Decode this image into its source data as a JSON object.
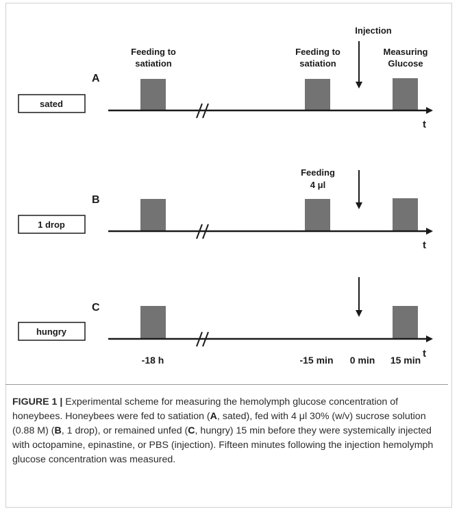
{
  "figure": {
    "panels": [
      {
        "letter": "A",
        "label": "sated",
        "headings": {
          "first": [
            "Feeding to",
            "satiation"
          ],
          "second": [
            "Feeding to",
            "satiation"
          ],
          "third": [
            "Measuring",
            "Glucose"
          ],
          "top": "Injection"
        }
      },
      {
        "letter": "B",
        "label": "1 drop",
        "headings": {
          "second": [
            "Feeding",
            "4 μl"
          ]
        }
      },
      {
        "letter": "C",
        "label": "hungry"
      }
    ],
    "axis_symbol": "t",
    "time_labels": [
      "-18 h",
      "-15 min",
      "0 min",
      "15 min"
    ]
  },
  "caption": {
    "label": "FIGURE 1 |",
    "text_parts": [
      " Experimental scheme for measuring the hemolymph glucose concentration of honeybees. Honeybees were fed to satiation (",
      "A",
      ", sated), fed with 4 μl 30% (w/v) sucrose solution (0.88 M) (",
      "B",
      ", 1 drop), or remained unfed (",
      "C",
      ", hungry) 15 min before they were systemically injected with octopamine, epinastine, or PBS (injection). Fifteen minutes following the injection hemolymph glucose concentration was measured."
    ]
  },
  "colors": {
    "feeding_block": "#737373",
    "line": "#1a1a1a",
    "caption_text": "#2b2b2b"
  }
}
